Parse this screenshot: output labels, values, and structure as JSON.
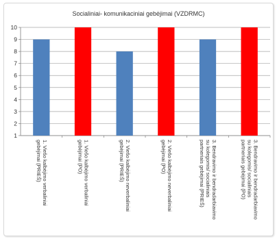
{
  "chart_data": {
    "type": "bar",
    "title": "Socialiniai- komunikaciniai gebėjimai  (VZDRMC)",
    "categories": [
      [
        "1. Viešo kalbėjimo verbaliniai",
        "gebėjimai (PRIEŠ)"
      ],
      [
        "1. Viešo kalbėjimo verbaliniai",
        "gebėjimai (PO)"
      ],
      [
        "2. Viešo kalbėjimo neverbaliniai",
        "gebėjimai (PRIEŠ)"
      ],
      [
        "2. Viešo kalbėjimo neverbaliniai",
        "gebėjimai (PO)"
      ],
      [
        "3. Bendravimo ir bendradarbiavimo",
        "su kolegomis/ socialiniais",
        "partneriais gebėjimai (PRIEŠ)"
      ],
      [
        "3. Bendravimo ir bendradarbiavimo",
        "su kolegomis/ socialiniais",
        "partneriais gebėjimai (PO)"
      ]
    ],
    "values": [
      9,
      10,
      8,
      10,
      9,
      10
    ],
    "bar_colors": [
      "#4f81bd",
      "#ff0000",
      "#4f81bd",
      "#ff0000",
      "#4f81bd",
      "#ff0000"
    ],
    "y_ticks": [
      "1",
      "2",
      "3",
      "4",
      "5",
      "6",
      "7",
      "8",
      "9",
      "10"
    ],
    "ylim": [
      1,
      10
    ],
    "grid": true,
    "legend": "none",
    "xlabel": "",
    "ylabel": ""
  }
}
